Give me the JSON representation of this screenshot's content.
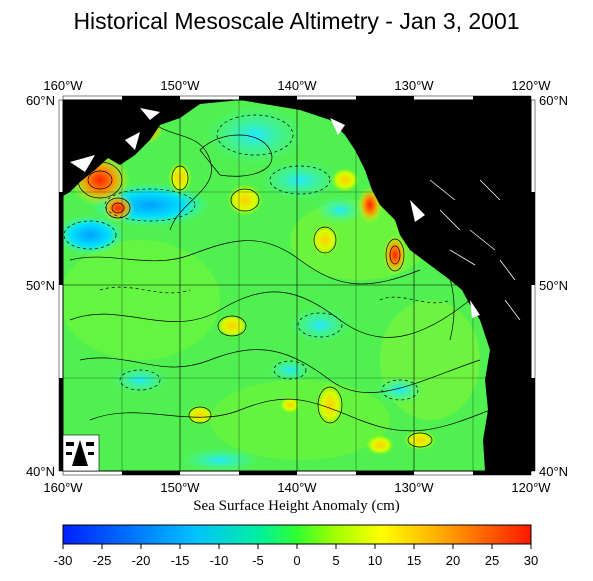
{
  "title": "Historical Mesoscale Altimetry - Jan 3, 2001",
  "map": {
    "lon_labels": [
      "160°W",
      "150°W",
      "140°W",
      "130°W",
      "120°W"
    ],
    "lat_labels": [
      "60°N",
      "50°N",
      "40°N"
    ],
    "lon_range": [
      -160,
      -120
    ],
    "lat_range": [
      40,
      60
    ],
    "land_color": "#000000",
    "grid": true
  },
  "colorbar": {
    "label": "Sea Surface Height Anomaly (cm)",
    "ticks": [
      "-30",
      "-25",
      "-20",
      "-15",
      "-10",
      "-5",
      "0",
      "5",
      "10",
      "15",
      "20",
      "25",
      "30"
    ],
    "range": [
      -30,
      30
    ],
    "colors": [
      "#0020ff",
      "#0090ff",
      "#00e0ff",
      "#00ff80",
      "#7fff00",
      "#ffff00",
      "#ffa000",
      "#ff2000"
    ]
  }
}
